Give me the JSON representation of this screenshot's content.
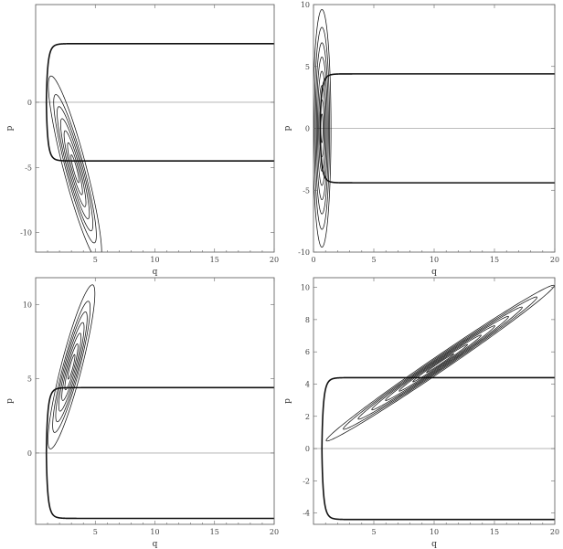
{
  "chart_data": [
    {
      "type": "line",
      "panel": "top-left",
      "xlabel": "q",
      "ylabel": "p",
      "xlim": [
        0,
        20
      ],
      "ylim": [
        -11.5,
        7.5
      ],
      "x_ticks": [
        5,
        10,
        15,
        20
      ],
      "y_ticks": [
        0,
        -5,
        -10
      ],
      "grid": false,
      "separatrix": {
        "asymptote": 4.5,
        "x_start": 0.9,
        "x_end": 20
      },
      "contours": {
        "center": [
          3.3,
          -5.1
        ],
        "major": 7.4,
        "minor": 0.95,
        "angle_deg": -74,
        "levels": [
          0.15,
          0.28,
          0.41,
          0.54,
          0.67,
          0.8,
          1.0
        ]
      }
    },
    {
      "type": "line",
      "panel": "top-right",
      "xlabel": "q",
      "ylabel": "p",
      "xlim": [
        0,
        20
      ],
      "ylim": [
        -10,
        10
      ],
      "x_ticks": [
        0,
        5,
        10,
        15,
        20
      ],
      "y_ticks": [
        10,
        5,
        0,
        -5,
        -10
      ],
      "grid": false,
      "separatrix": {
        "asymptote": 4.4,
        "x_start": 0.55,
        "x_end": 20
      },
      "contours": {
        "center": [
          0.7,
          0
        ],
        "major": 9.6,
        "minor": 0.75,
        "angle_deg": 90,
        "levels": [
          0.12,
          0.24,
          0.36,
          0.48,
          0.6,
          0.72,
          0.85,
          1.0
        ]
      }
    },
    {
      "type": "line",
      "panel": "bottom-left",
      "xlabel": "q",
      "ylabel": "p",
      "xlim": [
        0,
        20
      ],
      "ylim": [
        -4.8,
        11.8
      ],
      "x_ticks": [
        5,
        10,
        15,
        20
      ],
      "y_ticks": [
        10,
        5,
        0
      ],
      "grid": false,
      "separatrix": {
        "asymptote": 4.4,
        "x_start": 0.9,
        "x_end": 20
      },
      "contours": {
        "center": [
          3.0,
          5.8
        ],
        "major": 5.8,
        "minor": 0.85,
        "angle_deg": 72,
        "levels": [
          0.15,
          0.28,
          0.41,
          0.54,
          0.67,
          0.8,
          1.0
        ]
      }
    },
    {
      "type": "line",
      "panel": "bottom-right",
      "xlabel": "q",
      "ylabel": "p",
      "xlim": [
        0,
        20
      ],
      "ylim": [
        -4.7,
        10.6
      ],
      "x_ticks": [
        5,
        10,
        15,
        20
      ],
      "y_ticks": [
        10,
        8,
        6,
        4,
        2,
        0,
        -2,
        -4
      ],
      "grid": false,
      "separatrix": {
        "asymptote": 4.4,
        "x_start": 0.7,
        "x_end": 20
      },
      "contours": {
        "center": [
          10.5,
          5.3
        ],
        "major": 10.6,
        "minor": 0.5,
        "angle_deg": 27,
        "levels": [
          0.12,
          0.24,
          0.36,
          0.48,
          0.6,
          0.72,
          0.85,
          1.0
        ]
      }
    }
  ]
}
